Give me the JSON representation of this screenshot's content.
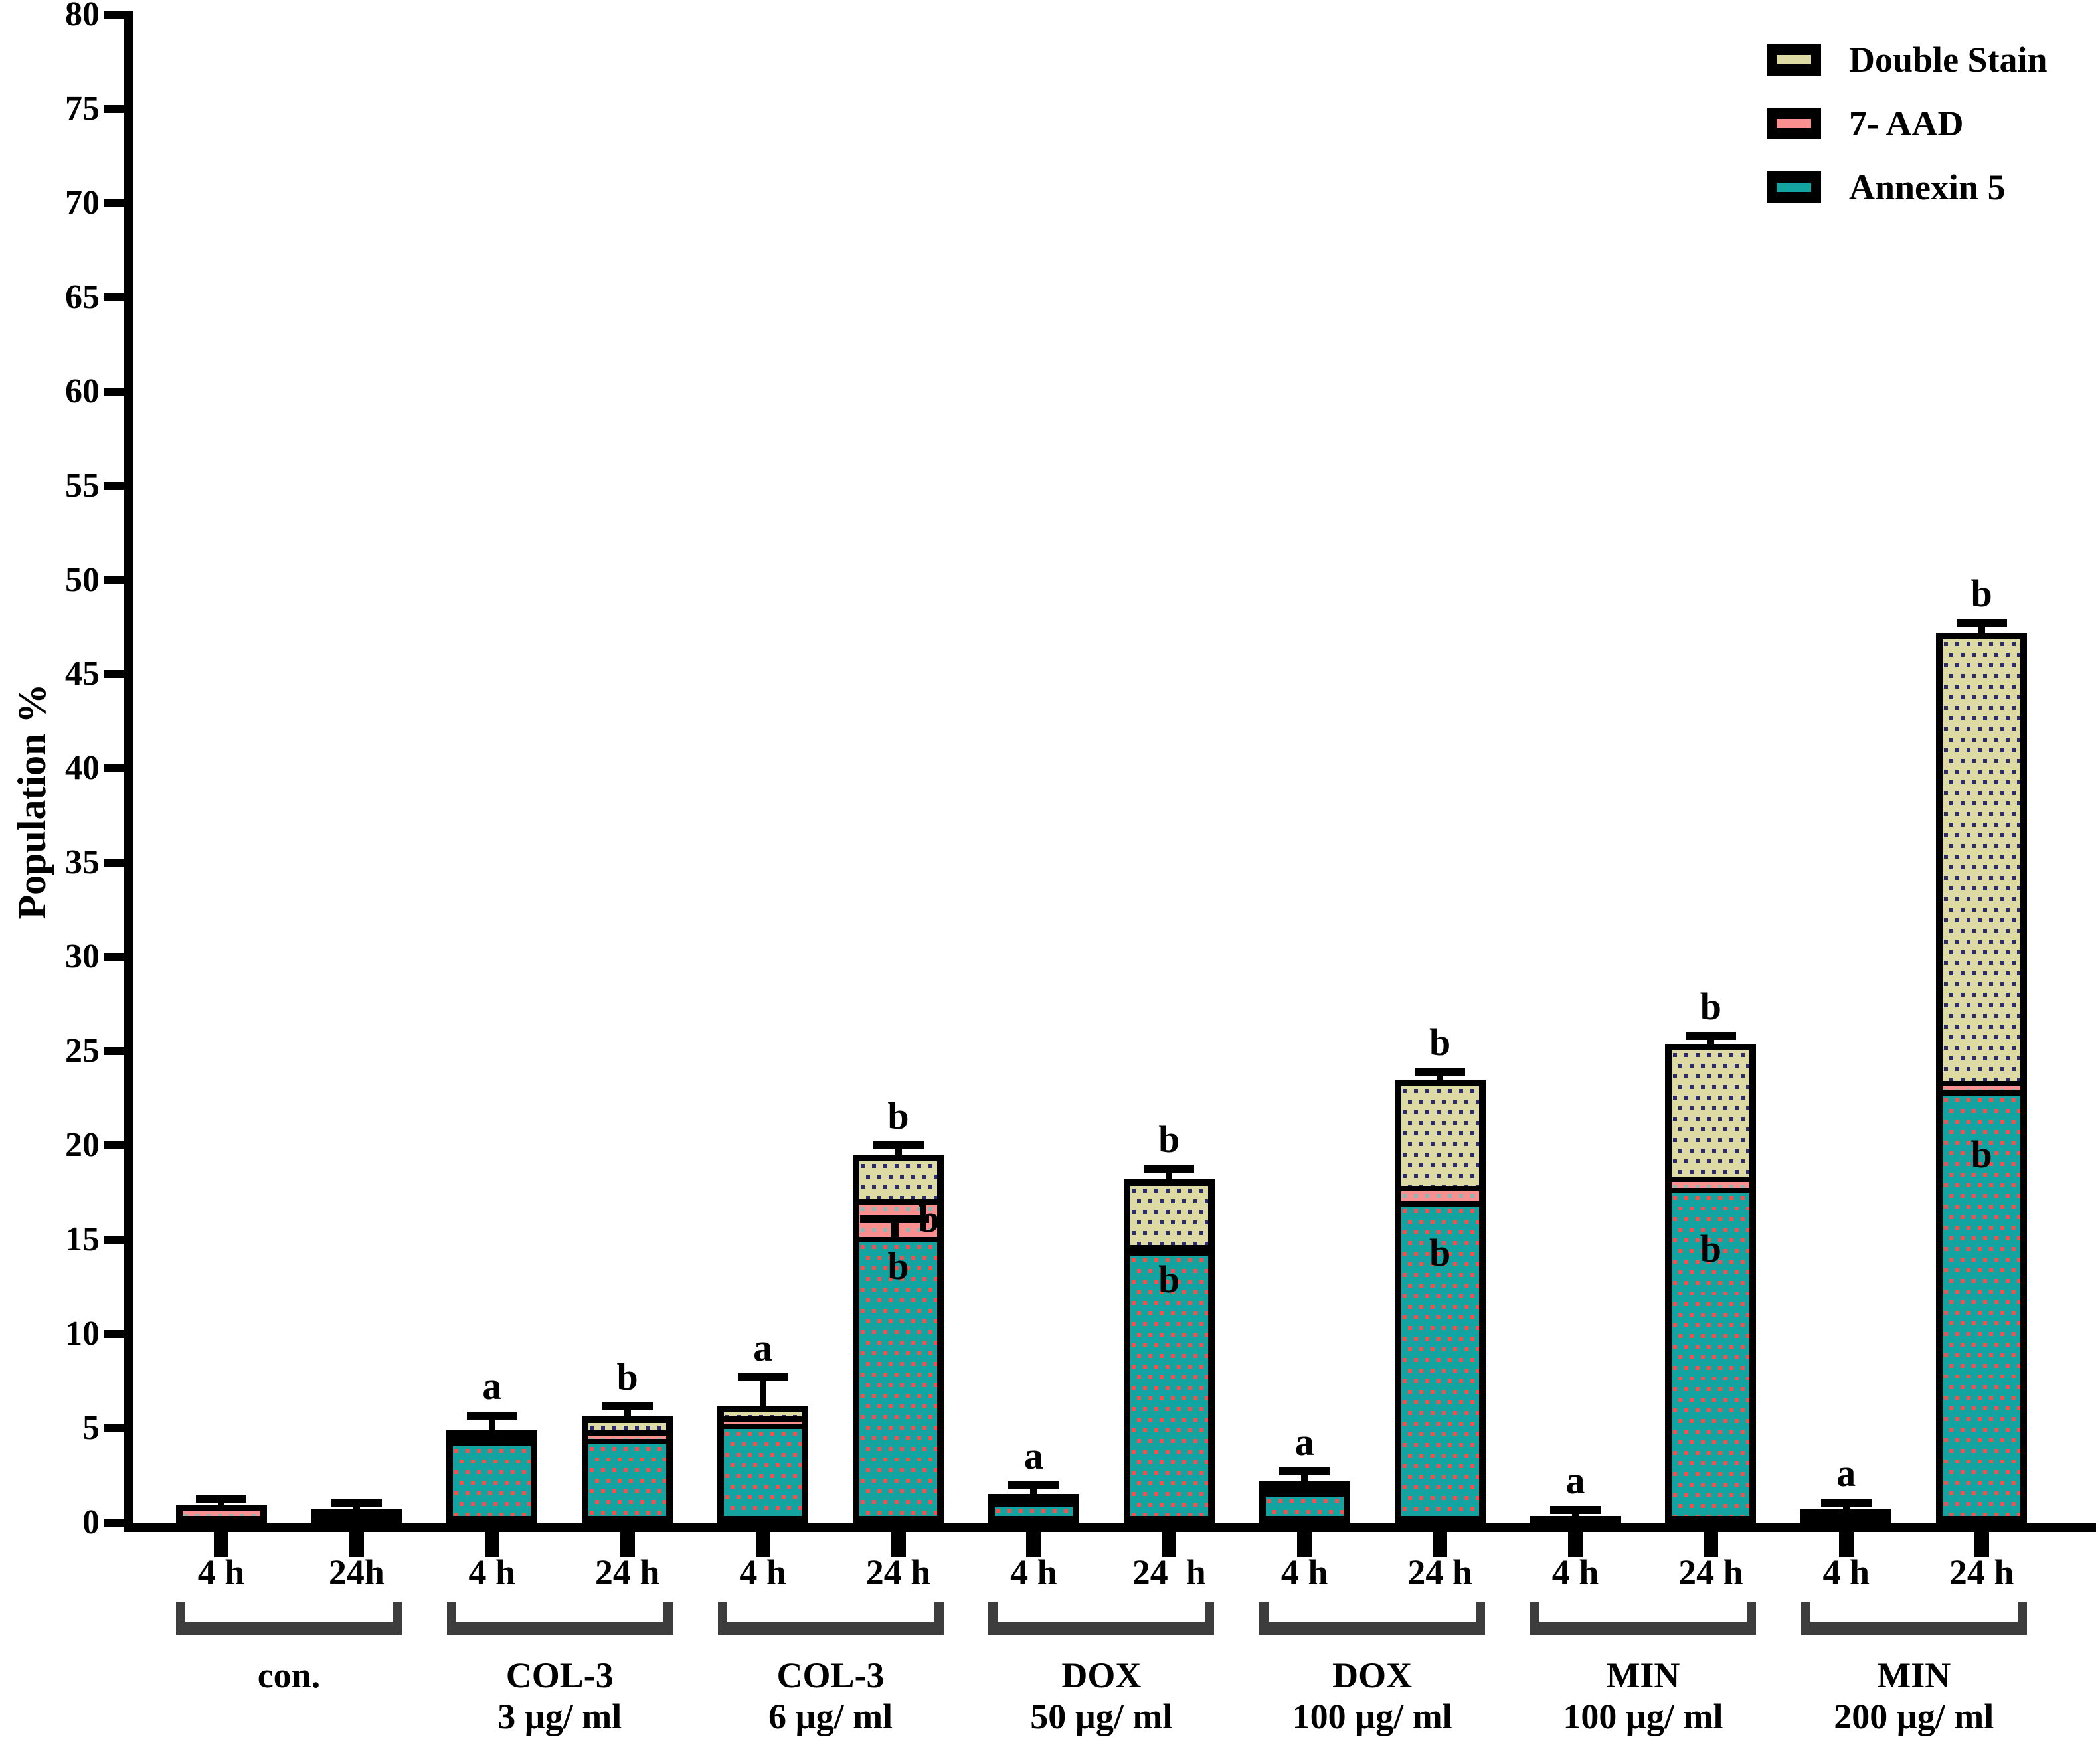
{
  "style": {
    "background": "#FFFFFF",
    "axis_color": "#000000",
    "bar_border": "#000000",
    "bracket_color": "#3D3D3D",
    "annexin_fill": "#13A3A0",
    "annexin_dot": "#F4504E",
    "aad_fill": "#FA8F8F",
    "aad_dot": "#8FB5B5",
    "double_fill": "#DDDAA3",
    "double_dot": "#2C2C6A"
  },
  "chart_data": {
    "type": "bar",
    "subtype": "stacked-bar-with-error-bars",
    "title": "",
    "ylabel": "Population %",
    "xlabel": "",
    "ylim": [
      0,
      80
    ],
    "ytick_step": 5,
    "grid": false,
    "legend_position": "top-right",
    "legend": [
      {
        "label": "Double Stain",
        "key": "double"
      },
      {
        "label": "7- AAD",
        "key": "aad"
      },
      {
        "label": "Annexin 5",
        "key": "annexin"
      }
    ],
    "groups": [
      {
        "label_lines": [
          "con."
        ]
      },
      {
        "label_lines": [
          "COL-3",
          "3 µg/ ml"
        ]
      },
      {
        "label_lines": [
          "COL-3",
          "6 µg/ ml"
        ]
      },
      {
        "label_lines": [
          "DOX",
          "50 µg/ ml"
        ]
      },
      {
        "label_lines": [
          "DOX",
          "100 µg/ ml"
        ]
      },
      {
        "label_lines": [
          "MIN",
          "100 µg/ ml"
        ]
      },
      {
        "label_lines": [
          "MIN",
          "200 µg/ ml"
        ]
      }
    ],
    "series_note": "values are Population %, stacked bottom-to-top: Annexin 5, 7-AAD, Double Stain",
    "bars": [
      {
        "group": "con.",
        "time": "4 h",
        "annexin": 0.2,
        "aad": 0.55,
        "double": 0.15,
        "total": 0.9,
        "err": 0.15,
        "letter": "",
        "inner_letters": []
      },
      {
        "group": "con.",
        "time": "24h",
        "annexin": 0.3,
        "aad": 0.25,
        "double": 0.2,
        "total": 0.75,
        "err": 0.1,
        "letter": "",
        "inner_letters": []
      },
      {
        "group": "COL-3 3 µg/ml",
        "time": "4 h",
        "annexin": 4.2,
        "aad": 0.3,
        "double": 0.4,
        "total": 4.9,
        "err": 0.55,
        "letter": "a",
        "inner_letters": []
      },
      {
        "group": "COL-3 3 µg/ml",
        "time": "24 h",
        "annexin": 4.3,
        "aad": 0.45,
        "double": 0.9,
        "total": 5.65,
        "err": 0.3,
        "letter": "b",
        "inner_letters": []
      },
      {
        "group": "COL-3 6 µg/ml",
        "time": "4 h",
        "annexin": 5.1,
        "aad": 0.4,
        "double": 0.7,
        "total": 6.2,
        "err": 1.3,
        "letter": "a",
        "inner_letters": []
      },
      {
        "group": "COL-3 6 µg/ml",
        "time": "24 h",
        "annexin": 15.0,
        "aad": 2.0,
        "double": 2.5,
        "total": 19.5,
        "err": 0.3,
        "letter": "b",
        "inner_letters": [
          {
            "text": "b",
            "y": 13.6,
            "dx": 0
          },
          {
            "text": "b",
            "y": 16.1,
            "dx": 46
          }
        ],
        "inner_err": {
          "y": 16.3
        }
      },
      {
        "group": "DOX 50 µg/ml",
        "time": "4 h",
        "annexin": 1.0,
        "aad": 0.2,
        "double": 0.3,
        "total": 1.5,
        "err": 0.25,
        "letter": "a",
        "inner_letters": []
      },
      {
        "group": "DOX 50 µg/ml",
        "time": "24  h",
        "annexin": 14.3,
        "aad": 0.3,
        "double": 3.6,
        "total": 18.2,
        "err": 0.35,
        "letter": "b",
        "inner_letters": [
          {
            "text": "b",
            "y": 12.9,
            "dx": 0
          }
        ]
      },
      {
        "group": "DOX 100 µg/ml",
        "time": "4 h",
        "annexin": 1.5,
        "aad": 0.3,
        "double": 0.4,
        "total": 2.2,
        "err": 0.3,
        "letter": "a",
        "inner_letters": []
      },
      {
        "group": "DOX 100 µg/ml",
        "time": "24 h",
        "annexin": 16.9,
        "aad": 0.8,
        "double": 5.8,
        "total": 23.5,
        "err": 0.2,
        "letter": "b",
        "inner_letters": [
          {
            "text": "b",
            "y": 14.3,
            "dx": 0
          }
        ]
      },
      {
        "group": "MIN 100 µg/ml",
        "time": "4 h",
        "annexin": 0.15,
        "aad": 0.1,
        "double": 0.1,
        "total": 0.35,
        "err": 0.1,
        "letter": "a",
        "inner_letters": []
      },
      {
        "group": "MIN 100 µg/ml",
        "time": "24 h",
        "annexin": 17.6,
        "aad": 0.6,
        "double": 7.2,
        "total": 25.4,
        "err": 0.2,
        "letter": "b",
        "inner_letters": [
          {
            "text": "b",
            "y": 14.5,
            "dx": 0
          }
        ]
      },
      {
        "group": "MIN 200 µg/ml",
        "time": "4 h",
        "annexin": 0.3,
        "aad": 0.2,
        "double": 0.2,
        "total": 0.7,
        "err": 0.15,
        "letter": "a",
        "inner_letters": []
      },
      {
        "group": "MIN 200 µg/ml",
        "time": "24 h",
        "annexin": 22.8,
        "aad": 0.5,
        "double": 23.9,
        "total": 47.2,
        "err": 0.3,
        "letter": "b",
        "inner_letters": [
          {
            "text": "b",
            "y": 19.5,
            "dx": 0
          }
        ]
      }
    ]
  }
}
